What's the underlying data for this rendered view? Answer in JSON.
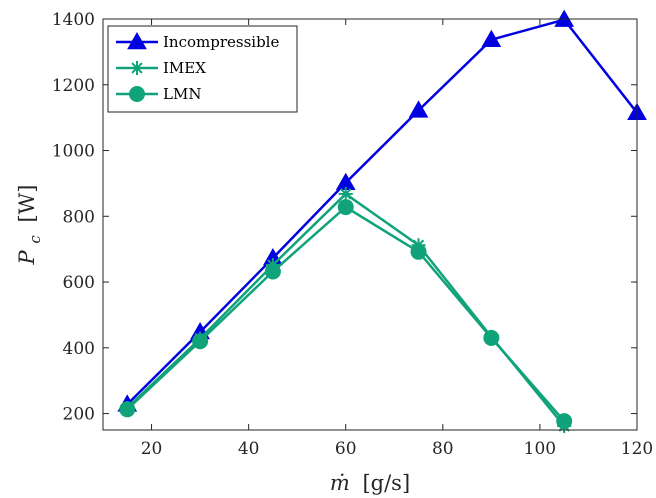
{
  "chart_data": {
    "type": "line",
    "xlabel": {
      "symbol": "ṁ",
      "unit": "[g/s]"
    },
    "ylabel": {
      "symbol": "P",
      "subscript": "c",
      "unit": "[W]"
    },
    "xlim": [
      10,
      120
    ],
    "ylim": [
      150,
      1400
    ],
    "xticks": [
      20,
      40,
      60,
      80,
      100,
      120
    ],
    "yticks": [
      200,
      400,
      600,
      800,
      1000,
      1200,
      1400
    ],
    "grid": false,
    "legend_position": "top-left",
    "series": [
      {
        "name": "Incompressible",
        "color": "#0000e0",
        "marker": "triangle",
        "x": [
          15,
          30,
          45,
          60,
          75,
          90,
          105,
          120
        ],
        "values": [
          228,
          448,
          673,
          902,
          1122,
          1337,
          1398,
          1115
        ]
      },
      {
        "name": "IMEX",
        "color": "#10a37a",
        "marker": "asterisk",
        "x": [
          15,
          30,
          45,
          60,
          75,
          90,
          105
        ],
        "values": [
          217,
          428,
          652,
          868,
          712,
          433,
          162
        ]
      },
      {
        "name": "LMN",
        "color": "#10a37a",
        "marker": "circle",
        "x": [
          15,
          30,
          45,
          60,
          75,
          90,
          105
        ],
        "values": [
          213,
          420,
          632,
          828,
          692,
          430,
          177
        ]
      }
    ]
  }
}
